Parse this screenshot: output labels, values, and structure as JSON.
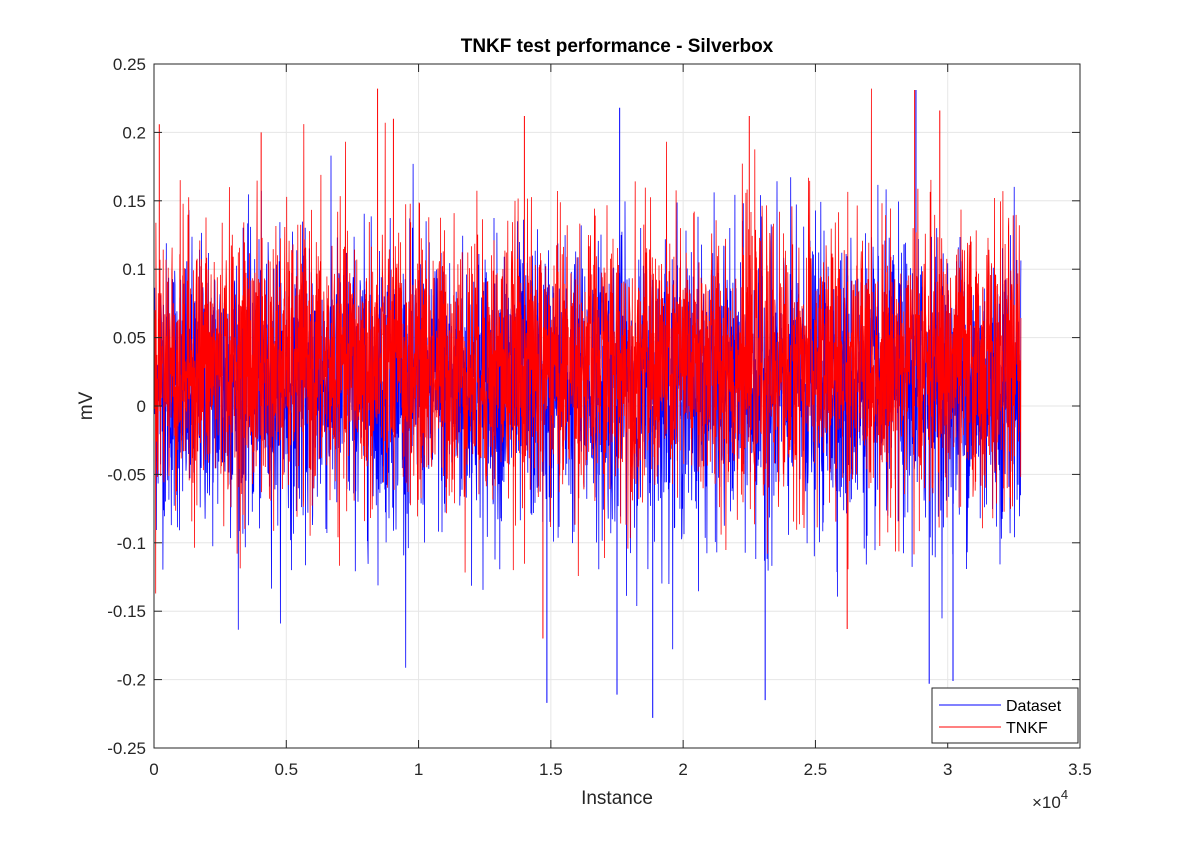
{
  "chart_data": {
    "type": "line",
    "title": "TNKF test performance - Silverbox",
    "xlabel": "Instance",
    "ylabel": "mV",
    "x_exponent_label": "×10",
    "x_exponent_power": "4",
    "xlim": [
      0,
      35000
    ],
    "ylim": [
      -0.25,
      0.25
    ],
    "x_ticks": [
      0,
      5000,
      10000,
      15000,
      20000,
      25000,
      30000,
      35000
    ],
    "x_tick_labels": [
      "0",
      "0.5",
      "1",
      "1.5",
      "2",
      "2.5",
      "3",
      "3.5"
    ],
    "y_ticks": [
      -0.25,
      -0.2,
      -0.15,
      -0.1,
      -0.05,
      0,
      0.05,
      0.1,
      0.15,
      0.2,
      0.25
    ],
    "y_tick_labels": [
      "-0.25",
      "-0.2",
      "-0.15",
      "-0.1",
      "-0.05",
      "0",
      "0.05",
      "0.1",
      "0.15",
      "0.2",
      "0.25"
    ],
    "grid": true,
    "legend_position": "bottom-right",
    "series": [
      {
        "name": "Dataset",
        "color": "#0000ff",
        "x_range": [
          0,
          32768
        ],
        "approx_typical_range": [
          -0.12,
          0.15
        ],
        "approx_min": -0.228,
        "approx_max": 0.231,
        "notable_spikes": [
          {
            "x": 14850,
            "y": -0.217
          },
          {
            "x": 18850,
            "y": -0.228
          },
          {
            "x": 17500,
            "y": -0.211
          },
          {
            "x": 23100,
            "y": -0.215
          },
          {
            "x": 28800,
            "y": 0.231
          },
          {
            "x": 17600,
            "y": 0.218
          },
          {
            "x": 30200,
            "y": -0.201
          },
          {
            "x": 29300,
            "y": -0.203
          }
        ]
      },
      {
        "name": "TNKF",
        "color": "#ff0000",
        "x_range": [
          0,
          32768
        ],
        "approx_typical_range": [
          -0.1,
          0.16
        ],
        "approx_min": -0.17,
        "approx_max": 0.232,
        "notable_spikes": [
          {
            "x": 8450,
            "y": 0.232
          },
          {
            "x": 28750,
            "y": 0.231
          },
          {
            "x": 200,
            "y": 0.206
          },
          {
            "x": 4050,
            "y": 0.2
          },
          {
            "x": 9050,
            "y": 0.21
          },
          {
            "x": 14000,
            "y": 0.212
          },
          {
            "x": 22500,
            "y": 0.212
          },
          {
            "x": 29700,
            "y": 0.216
          },
          {
            "x": 26200,
            "y": -0.163
          },
          {
            "x": 14700,
            "y": -0.17
          }
        ]
      }
    ]
  }
}
